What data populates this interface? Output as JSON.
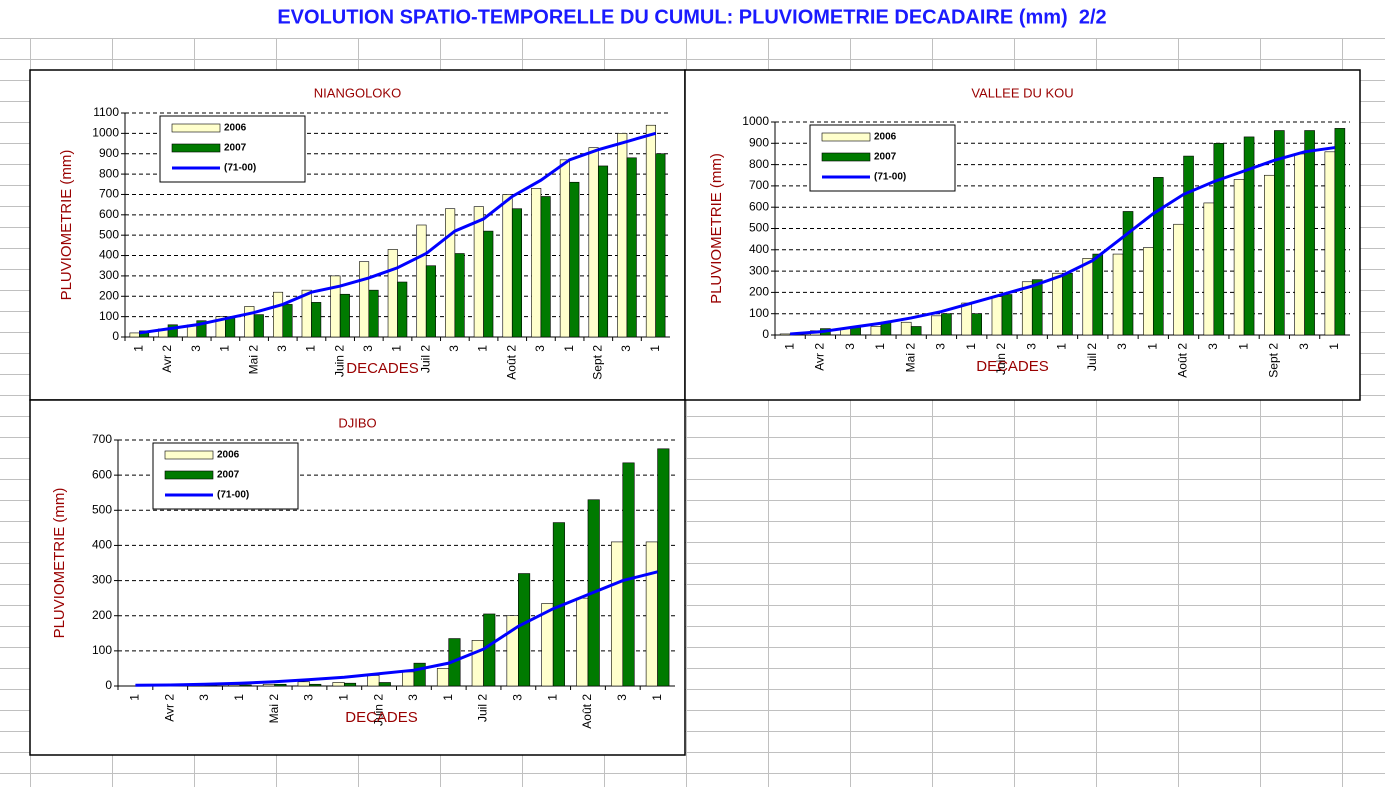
{
  "title": "EVOLUTION SPATIO-TEMPORELLE DU CUMUL: PLUVIOMETRIE DECADAIRE (mm)  2/2",
  "chart_data": [
    {
      "type": "bar",
      "title": "NIANGOLOKO",
      "y_label": "PLUVIOMETRIE (mm)",
      "x_label": "DECADES",
      "categories": [
        "1",
        "Avr 2",
        "3",
        "1",
        "Mai 2",
        "3",
        "1",
        "Juin 2",
        "3",
        "1",
        "Juil 2",
        "3",
        "1",
        "Août 2",
        "3",
        "1",
        "Sept 2",
        "3",
        "1"
      ],
      "series": [
        {
          "name": "2006",
          "color": "#ffffcc",
          "values": [
            20,
            40,
            60,
            100,
            150,
            220,
            230,
            300,
            370,
            430,
            550,
            630,
            640,
            700,
            730,
            870,
            930,
            1000,
            1040
          ]
        },
        {
          "name": "2007",
          "color": "#007a00",
          "values": [
            30,
            60,
            80,
            100,
            110,
            160,
            170,
            210,
            230,
            270,
            350,
            410,
            520,
            630,
            690,
            760,
            840,
            880,
            900
          ]
        },
        {
          "name": "(71-00)",
          "color": "#0000ff",
          "type": "line",
          "values": [
            20,
            40,
            60,
            90,
            120,
            160,
            220,
            250,
            290,
            340,
            410,
            520,
            580,
            690,
            770,
            870,
            920,
            960,
            1000
          ]
        }
      ],
      "ylim": [
        0,
        1100
      ],
      "yticks": [
        0,
        100,
        200,
        300,
        400,
        500,
        600,
        700,
        800,
        900,
        1000,
        1100
      ],
      "grid": true,
      "legend": "top-left"
    },
    {
      "type": "bar",
      "title": "VALLEE DU KOU",
      "y_label": "PLUVIOMETRIE (mm)",
      "x_label": "DECADES",
      "categories": [
        "1",
        "Avr 2",
        "3",
        "1",
        "Mai 2",
        "3",
        "1",
        "Juin 2",
        "3",
        "1",
        "Juil 2",
        "3",
        "1",
        "Août 2",
        "3",
        "1",
        "Sept 2",
        "3",
        "1"
      ],
      "series": [
        {
          "name": "2006",
          "color": "#ffffcc",
          "values": [
            5,
            20,
            30,
            40,
            60,
            90,
            150,
            180,
            250,
            290,
            360,
            380,
            410,
            520,
            620,
            730,
            750,
            850,
            860
          ]
        },
        {
          "name": "2007",
          "color": "#007a00",
          "values": [
            5,
            30,
            40,
            60,
            40,
            100,
            100,
            190,
            260,
            290,
            380,
            580,
            740,
            840,
            900,
            930,
            960,
            960,
            970
          ]
        },
        {
          "name": "(71-00)",
          "color": "#0000ff",
          "type": "line",
          "values": [
            5,
            15,
            35,
            55,
            80,
            110,
            150,
            190,
            230,
            280,
            350,
            460,
            570,
            660,
            720,
            770,
            820,
            860,
            880
          ]
        }
      ],
      "ylim": [
        0,
        1000
      ],
      "yticks": [
        0,
        100,
        200,
        300,
        400,
        500,
        600,
        700,
        800,
        900,
        1000
      ],
      "grid": true,
      "legend": "top-left"
    },
    {
      "type": "bar",
      "title": "DJIBO",
      "y_label": "PLUVIOMETRIE (mm)",
      "x_label": "DECADES",
      "categories": [
        "1",
        "Avr 2",
        "3",
        "1",
        "Mai 2",
        "3",
        "1",
        "Juin 2",
        "3",
        "1",
        "Juil 2",
        "3",
        "1",
        "Août 2",
        "3",
        "1"
      ],
      "series": [
        {
          "name": "2006",
          "color": "#ffffcc",
          "values": [
            0,
            0,
            2,
            3,
            5,
            12,
            10,
            30,
            40,
            50,
            130,
            200,
            235,
            250,
            410,
            410
          ]
        },
        {
          "name": "2007",
          "color": "#007a00",
          "values": [
            0,
            0,
            2,
            3,
            5,
            5,
            8,
            10,
            65,
            135,
            205,
            320,
            465,
            530,
            635,
            675
          ]
        },
        {
          "name": "(71-00)",
          "color": "#0000ff",
          "type": "line",
          "values": [
            2,
            3,
            5,
            8,
            12,
            18,
            25,
            35,
            45,
            65,
            105,
            170,
            220,
            260,
            300,
            325
          ]
        }
      ],
      "ylim": [
        0,
        700
      ],
      "yticks": [
        0,
        100,
        200,
        300,
        400,
        500,
        600,
        700
      ],
      "grid": true,
      "legend": "top-left"
    }
  ]
}
